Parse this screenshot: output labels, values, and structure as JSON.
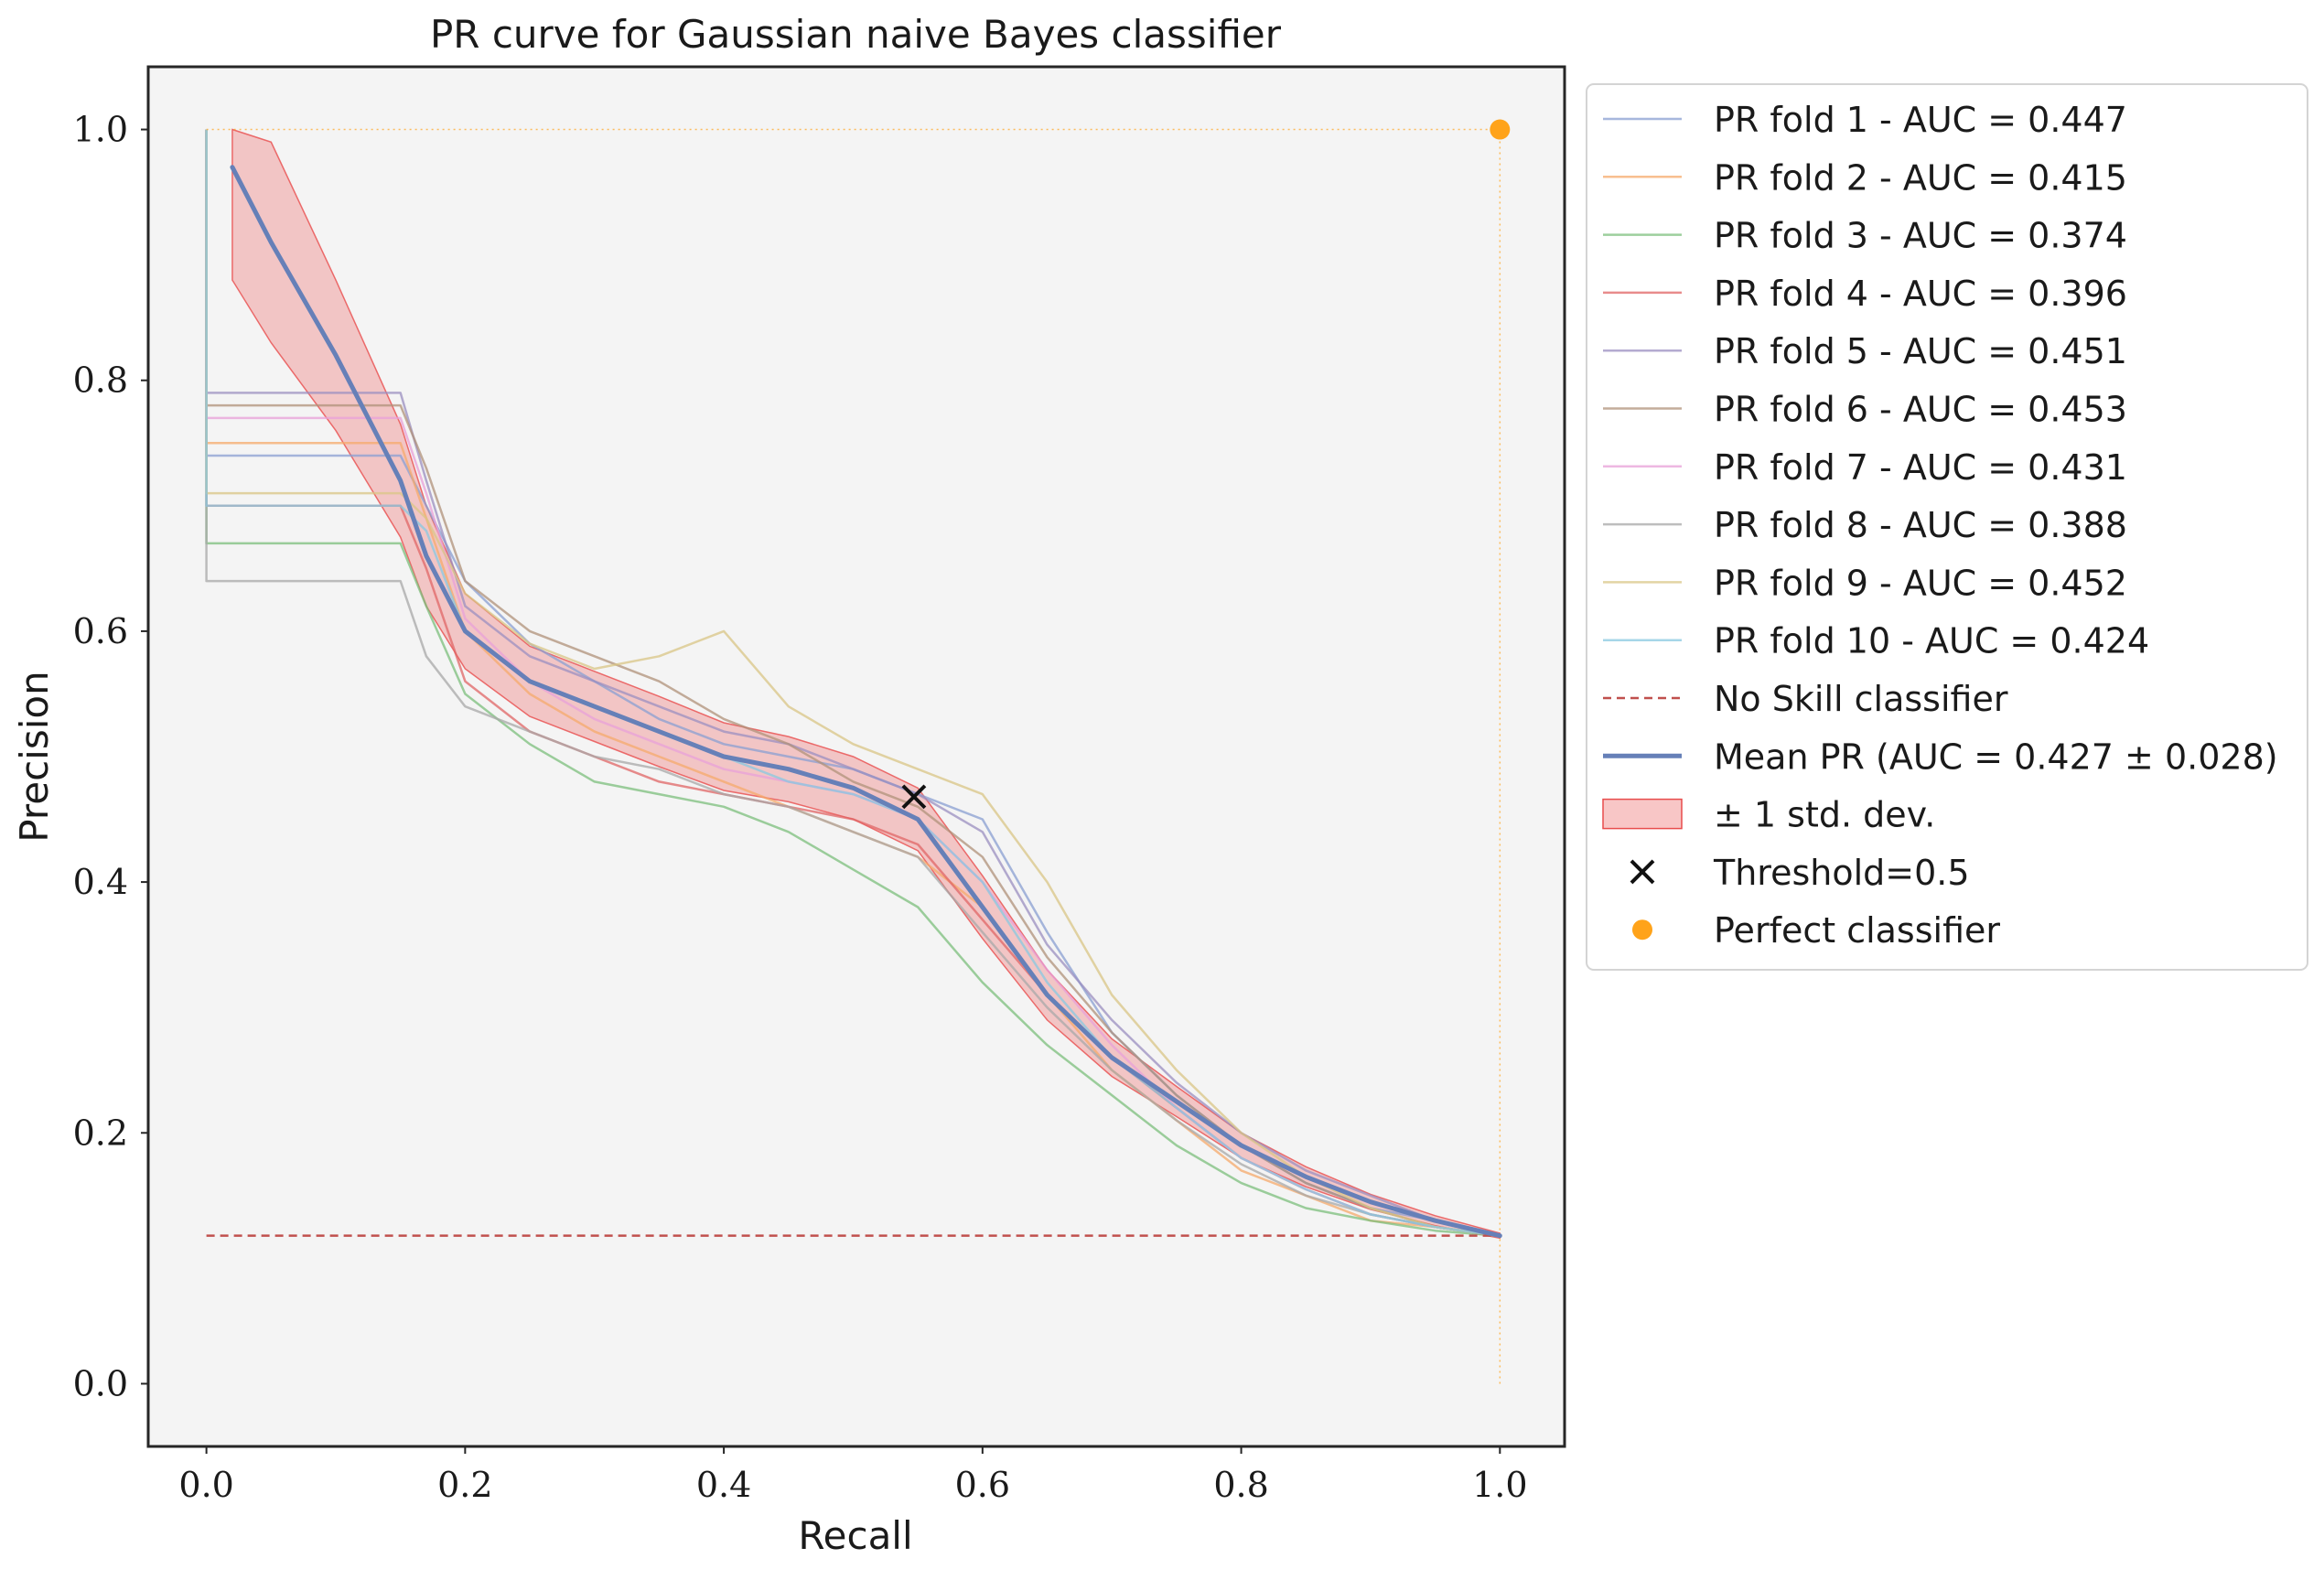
{
  "chart_data": {
    "type": "line",
    "title": "PR curve for Gaussian naive Bayes classifier",
    "xlabel": "Recall",
    "ylabel": "Precision",
    "xlim": [
      -0.045,
      1.05
    ],
    "ylim": [
      -0.05,
      1.05
    ],
    "xticks": [
      0.0,
      0.2,
      0.4,
      0.6,
      0.8,
      1.0
    ],
    "xtick_labels": [
      "0.0",
      "0.2",
      "0.4",
      "0.6",
      "0.8",
      "1.0"
    ],
    "yticks": [
      0.0,
      0.2,
      0.4,
      0.6,
      0.8,
      1.0
    ],
    "ytick_labels": [
      "0.0",
      "0.2",
      "0.4",
      "0.6",
      "0.8",
      "1.0"
    ],
    "grid": false,
    "legend_position": "outside-right-top",
    "background": "#f4f4f4",
    "folds": [
      {
        "name": "PR fold 1 - AUC = 0.447",
        "color": "#8a9fd1",
        "start_precision": 0.74,
        "x": [
          0.0,
          0.15,
          0.17,
          0.2,
          0.25,
          0.3,
          0.35,
          0.4,
          0.45,
          0.5,
          0.55,
          0.6,
          0.65,
          0.7,
          0.75,
          0.8,
          0.85,
          0.9,
          0.95,
          1.0
        ],
        "y": [
          0.74,
          0.74,
          0.7,
          0.64,
          0.59,
          0.56,
          0.53,
          0.51,
          0.5,
          0.49,
          0.47,
          0.45,
          0.36,
          0.28,
          0.23,
          0.19,
          0.16,
          0.14,
          0.13,
          0.118
        ]
      },
      {
        "name": "PR fold 2 - AUC = 0.415",
        "color": "#f5a96b",
        "start_precision": 0.75,
        "x": [
          0.0,
          0.15,
          0.17,
          0.2,
          0.25,
          0.3,
          0.35,
          0.4,
          0.45,
          0.5,
          0.55,
          0.6,
          0.65,
          0.7,
          0.75,
          0.8,
          0.85,
          0.9,
          0.95,
          1.0
        ],
        "y": [
          0.75,
          0.75,
          0.69,
          0.6,
          0.55,
          0.52,
          0.5,
          0.48,
          0.46,
          0.44,
          0.42,
          0.38,
          0.31,
          0.25,
          0.21,
          0.17,
          0.15,
          0.13,
          0.125,
          0.118
        ]
      },
      {
        "name": "PR fold 3 - AUC = 0.374",
        "color": "#7cbf7c",
        "start_precision": 0.67,
        "x": [
          0.0,
          0.15,
          0.17,
          0.2,
          0.25,
          0.3,
          0.35,
          0.4,
          0.45,
          0.5,
          0.55,
          0.6,
          0.65,
          0.7,
          0.75,
          0.8,
          0.85,
          0.9,
          0.95,
          1.0
        ],
        "y": [
          0.67,
          0.67,
          0.62,
          0.55,
          0.51,
          0.48,
          0.47,
          0.46,
          0.44,
          0.41,
          0.38,
          0.32,
          0.27,
          0.23,
          0.19,
          0.16,
          0.14,
          0.13,
          0.122,
          0.118
        ]
      },
      {
        "name": "PR fold 4 - AUC = 0.396",
        "color": "#e06666",
        "start_precision": 0.7,
        "x": [
          0.0,
          0.15,
          0.17,
          0.2,
          0.25,
          0.3,
          0.35,
          0.4,
          0.45,
          0.5,
          0.55,
          0.6,
          0.65,
          0.7,
          0.75,
          0.8,
          0.85,
          0.9,
          0.95,
          1.0
        ],
        "y": [
          0.7,
          0.7,
          0.65,
          0.56,
          0.52,
          0.5,
          0.48,
          0.47,
          0.46,
          0.45,
          0.43,
          0.37,
          0.31,
          0.26,
          0.22,
          0.18,
          0.155,
          0.135,
          0.125,
          0.118
        ]
      },
      {
        "name": "PR fold 5 - AUC = 0.451",
        "color": "#9b8fc0",
        "start_precision": 0.79,
        "x": [
          0.0,
          0.15,
          0.17,
          0.2,
          0.25,
          0.3,
          0.35,
          0.4,
          0.45,
          0.5,
          0.55,
          0.6,
          0.65,
          0.7,
          0.75,
          0.8,
          0.85,
          0.9,
          0.95,
          1.0
        ],
        "y": [
          0.79,
          0.79,
          0.72,
          0.62,
          0.58,
          0.56,
          0.54,
          0.52,
          0.51,
          0.49,
          0.47,
          0.44,
          0.35,
          0.29,
          0.24,
          0.2,
          0.17,
          0.15,
          0.13,
          0.118
        ]
      },
      {
        "name": "PR fold 6 - AUC = 0.453",
        "color": "#b0917a",
        "start_precision": 0.78,
        "x": [
          0.0,
          0.15,
          0.17,
          0.2,
          0.25,
          0.3,
          0.35,
          0.4,
          0.45,
          0.5,
          0.55,
          0.6,
          0.65,
          0.7,
          0.75,
          0.8,
          0.85,
          0.9,
          0.95,
          1.0
        ],
        "y": [
          0.78,
          0.78,
          0.73,
          0.64,
          0.6,
          0.58,
          0.56,
          0.53,
          0.51,
          0.48,
          0.46,
          0.42,
          0.34,
          0.28,
          0.23,
          0.19,
          0.16,
          0.14,
          0.125,
          0.118
        ]
      },
      {
        "name": "PR fold 7 - AUC = 0.431",
        "color": "#e8a0d8",
        "start_precision": 0.77,
        "x": [
          0.0,
          0.15,
          0.17,
          0.2,
          0.25,
          0.3,
          0.35,
          0.4,
          0.45,
          0.5,
          0.55,
          0.6,
          0.65,
          0.7,
          0.75,
          0.8,
          0.85,
          0.9,
          0.95,
          1.0
        ],
        "y": [
          0.77,
          0.77,
          0.71,
          0.61,
          0.56,
          0.53,
          0.51,
          0.49,
          0.48,
          0.47,
          0.45,
          0.4,
          0.33,
          0.27,
          0.22,
          0.18,
          0.155,
          0.135,
          0.125,
          0.118
        ]
      },
      {
        "name": "PR fold 8 - AUC = 0.388",
        "color": "#a8a8a8",
        "start_precision": 0.64,
        "x": [
          0.0,
          0.15,
          0.17,
          0.2,
          0.25,
          0.3,
          0.35,
          0.4,
          0.45,
          0.5,
          0.55,
          0.6,
          0.65,
          0.7,
          0.75,
          0.8,
          0.85,
          0.9,
          0.95,
          1.0
        ],
        "y": [
          0.64,
          0.64,
          0.58,
          0.54,
          0.52,
          0.5,
          0.49,
          0.47,
          0.46,
          0.44,
          0.42,
          0.36,
          0.3,
          0.25,
          0.21,
          0.175,
          0.15,
          0.135,
          0.125,
          0.118
        ]
      },
      {
        "name": "PR fold 9 - AUC = 0.452",
        "color": "#d9c685",
        "start_precision": 0.71,
        "x": [
          0.0,
          0.15,
          0.17,
          0.2,
          0.25,
          0.3,
          0.35,
          0.4,
          0.45,
          0.5,
          0.55,
          0.6,
          0.65,
          0.7,
          0.75,
          0.8,
          0.85,
          0.9,
          0.95,
          1.0
        ],
        "y": [
          0.71,
          0.71,
          0.69,
          0.63,
          0.59,
          0.57,
          0.58,
          0.6,
          0.54,
          0.51,
          0.49,
          0.47,
          0.4,
          0.31,
          0.25,
          0.2,
          0.165,
          0.14,
          0.125,
          0.118
        ]
      },
      {
        "name": "PR fold 10 - AUC = 0.424",
        "color": "#88c8e0",
        "start_precision": 0.7,
        "x": [
          0.0,
          0.15,
          0.17,
          0.2,
          0.25,
          0.3,
          0.35,
          0.4,
          0.45,
          0.5,
          0.55,
          0.6,
          0.65,
          0.7,
          0.75,
          0.8,
          0.85,
          0.9,
          0.95,
          1.0
        ],
        "y": [
          0.7,
          0.7,
          0.68,
          0.6,
          0.56,
          0.54,
          0.52,
          0.5,
          0.48,
          0.47,
          0.45,
          0.4,
          0.32,
          0.26,
          0.22,
          0.18,
          0.155,
          0.135,
          0.125,
          0.118
        ]
      }
    ],
    "no_skill": {
      "name": "No Skill classifier",
      "color": "#c0504d",
      "y": 0.118,
      "x": [
        0.0,
        1.0
      ]
    },
    "mean": {
      "name": "Mean PR (AUC = 0.427 ± 0.028)",
      "color": "#6680b8",
      "x": [
        0.02,
        0.05,
        0.1,
        0.15,
        0.17,
        0.2,
        0.25,
        0.3,
        0.35,
        0.4,
        0.45,
        0.5,
        0.55,
        0.6,
        0.65,
        0.7,
        0.75,
        0.8,
        0.85,
        0.9,
        0.95,
        1.0
      ],
      "y": [
        0.97,
        0.91,
        0.82,
        0.72,
        0.66,
        0.6,
        0.56,
        0.54,
        0.52,
        0.5,
        0.49,
        0.475,
        0.45,
        0.38,
        0.31,
        0.26,
        0.225,
        0.19,
        0.165,
        0.145,
        0.13,
        0.118
      ],
      "std": [
        0.09,
        0.08,
        0.06,
        0.045,
        0.04,
        0.03,
        0.028,
        0.028,
        0.028,
        0.027,
        0.026,
        0.025,
        0.025,
        0.025,
        0.02,
        0.015,
        0.012,
        0.01,
        0.008,
        0.006,
        0.004,
        0.002
      ]
    },
    "std_band": {
      "name": "± 1 std. dev.",
      "color": "#f08080"
    },
    "threshold": {
      "name": "Threshold=0.5",
      "x": 0.547,
      "y": 0.468
    },
    "perfect": {
      "name": "Perfect classifier",
      "x": 1.0,
      "y": 1.0,
      "color": "#ffa31a"
    }
  }
}
